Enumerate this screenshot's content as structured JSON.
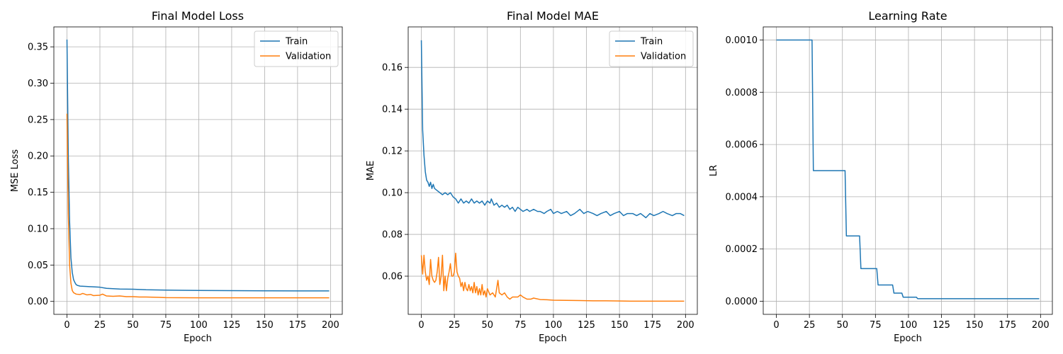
{
  "chart_data": [
    {
      "type": "line",
      "title": "Final Model Loss",
      "xlabel": "Epoch",
      "ylabel": "MSE Loss",
      "xlim": [
        -9.95,
        208.95
      ],
      "ylim": [
        -0.0178,
        0.3774
      ],
      "xticks": [
        0,
        25,
        50,
        75,
        100,
        125,
        150,
        175,
        200
      ],
      "xtick_labels": [
        "0",
        "25",
        "50",
        "75",
        "100",
        "125",
        "150",
        "175",
        "200"
      ],
      "yticks": [
        0.0,
        0.05,
        0.1,
        0.15,
        0.2,
        0.25,
        0.3,
        0.35
      ],
      "ytick_labels": [
        "0.00",
        "0.05",
        "0.10",
        "0.15",
        "0.20",
        "0.25",
        "0.30",
        "0.35"
      ],
      "grid": true,
      "legend": "top-right",
      "series": [
        {
          "name": "Train",
          "color": "#1f77b4",
          "points": [
            [
              0,
              0.36
            ],
            [
              1,
              0.2
            ],
            [
              2,
              0.11
            ],
            [
              3,
              0.06
            ],
            [
              4,
              0.04
            ],
            [
              5,
              0.03
            ],
            [
              6,
              0.026
            ],
            [
              7,
              0.023
            ],
            [
              8,
              0.022
            ],
            [
              10,
              0.021
            ],
            [
              15,
              0.0205
            ],
            [
              20,
              0.02
            ],
            [
              25,
              0.0195
            ],
            [
              30,
              0.018
            ],
            [
              40,
              0.017
            ],
            [
              50,
              0.0168
            ],
            [
              60,
              0.016
            ],
            [
              75,
              0.0155
            ],
            [
              100,
              0.015
            ],
            [
              125,
              0.0148
            ],
            [
              150,
              0.0146
            ],
            [
              175,
              0.0145
            ],
            [
              199,
              0.0145
            ]
          ]
        },
        {
          "name": "Validation",
          "color": "#ff7f0e",
          "points": [
            [
              0,
              0.258
            ],
            [
              1,
              0.12
            ],
            [
              2,
              0.05
            ],
            [
              3,
              0.025
            ],
            [
              4,
              0.015
            ],
            [
              5,
              0.012
            ],
            [
              7,
              0.01
            ],
            [
              10,
              0.0095
            ],
            [
              12,
              0.011
            ],
            [
              15,
              0.009
            ],
            [
              18,
              0.0095
            ],
            [
              20,
              0.008
            ],
            [
              25,
              0.0085
            ],
            [
              27,
              0.01
            ],
            [
              30,
              0.0075
            ],
            [
              35,
              0.007
            ],
            [
              40,
              0.0075
            ],
            [
              45,
              0.0065
            ],
            [
              50,
              0.0065
            ],
            [
              55,
              0.006
            ],
            [
              60,
              0.006
            ],
            [
              70,
              0.0055
            ],
            [
              75,
              0.0052
            ],
            [
              100,
              0.005
            ],
            [
              125,
              0.005
            ],
            [
              150,
              0.005
            ],
            [
              175,
              0.005
            ],
            [
              199,
              0.005
            ]
          ]
        }
      ]
    },
    {
      "type": "line",
      "title": "Final Model MAE",
      "xlabel": "Epoch",
      "ylabel": "MAE",
      "xlim": [
        -9.95,
        208.95
      ],
      "ylim": [
        0.0417,
        0.1794
      ],
      "xticks": [
        0,
        25,
        50,
        75,
        100,
        125,
        150,
        175,
        200
      ],
      "xtick_labels": [
        "0",
        "25",
        "50",
        "75",
        "100",
        "125",
        "150",
        "175",
        "200"
      ],
      "yticks": [
        0.06,
        0.08,
        0.1,
        0.12,
        0.14,
        0.16
      ],
      "ytick_labels": [
        "0.06",
        "0.08",
        "0.10",
        "0.12",
        "0.14",
        "0.16"
      ],
      "grid": true,
      "legend": "top-right",
      "series": [
        {
          "name": "Train",
          "color": "#1f77b4",
          "points": [
            [
              0,
              0.173
            ],
            [
              1,
              0.13
            ],
            [
              2,
              0.118
            ],
            [
              3,
              0.11
            ],
            [
              4,
              0.106
            ],
            [
              5,
              0.105
            ],
            [
              6,
              0.103
            ],
            [
              7,
              0.105
            ],
            [
              8,
              0.102
            ],
            [
              9,
              0.104
            ],
            [
              10,
              0.102
            ],
            [
              12,
              0.101
            ],
            [
              14,
              0.1
            ],
            [
              16,
              0.099
            ],
            [
              18,
              0.1
            ],
            [
              20,
              0.099
            ],
            [
              22,
              0.1
            ],
            [
              24,
              0.098
            ],
            [
              26,
              0.097
            ],
            [
              28,
              0.095
            ],
            [
              30,
              0.097
            ],
            [
              32,
              0.095
            ],
            [
              34,
              0.096
            ],
            [
              36,
              0.095
            ],
            [
              38,
              0.097
            ],
            [
              40,
              0.095
            ],
            [
              42,
              0.096
            ],
            [
              44,
              0.095
            ],
            [
              46,
              0.096
            ],
            [
              48,
              0.094
            ],
            [
              50,
              0.096
            ],
            [
              52,
              0.095
            ],
            [
              53,
              0.097
            ],
            [
              55,
              0.094
            ],
            [
              57,
              0.095
            ],
            [
              59,
              0.093
            ],
            [
              61,
              0.094
            ],
            [
              63,
              0.093
            ],
            [
              65,
              0.094
            ],
            [
              67,
              0.092
            ],
            [
              69,
              0.093
            ],
            [
              71,
              0.091
            ],
            [
              73,
              0.093
            ],
            [
              75,
              0.092
            ],
            [
              77,
              0.091
            ],
            [
              80,
              0.092
            ],
            [
              82,
              0.091
            ],
            [
              85,
              0.092
            ],
            [
              88,
              0.091
            ],
            [
              90,
              0.091
            ],
            [
              93,
              0.09
            ],
            [
              95,
              0.091
            ],
            [
              98,
              0.092
            ],
            [
              100,
              0.09
            ],
            [
              103,
              0.091
            ],
            [
              106,
              0.09
            ],
            [
              110,
              0.091
            ],
            [
              113,
              0.089
            ],
            [
              116,
              0.09
            ],
            [
              120,
              0.092
            ],
            [
              123,
              0.09
            ],
            [
              126,
              0.091
            ],
            [
              130,
              0.09
            ],
            [
              133,
              0.089
            ],
            [
              136,
              0.09
            ],
            [
              140,
              0.091
            ],
            [
              143,
              0.089
            ],
            [
              146,
              0.09
            ],
            [
              150,
              0.091
            ],
            [
              153,
              0.089
            ],
            [
              156,
              0.09
            ],
            [
              160,
              0.09
            ],
            [
              163,
              0.089
            ],
            [
              166,
              0.09
            ],
            [
              170,
              0.088
            ],
            [
              173,
              0.09
            ],
            [
              176,
              0.089
            ],
            [
              180,
              0.09
            ],
            [
              183,
              0.091
            ],
            [
              186,
              0.09
            ],
            [
              190,
              0.089
            ],
            [
              193,
              0.09
            ],
            [
              196,
              0.09
            ],
            [
              199,
              0.089
            ]
          ]
        },
        {
          "name": "Validation",
          "color": "#ff7f0e",
          "points": [
            [
              0,
              0.07
            ],
            [
              1,
              0.061
            ],
            [
              2,
              0.07
            ],
            [
              3,
              0.062
            ],
            [
              4,
              0.058
            ],
            [
              5,
              0.06
            ],
            [
              6,
              0.056
            ],
            [
              7,
              0.068
            ],
            [
              8,
              0.06
            ],
            [
              9,
              0.058
            ],
            [
              10,
              0.057
            ],
            [
              11,
              0.058
            ],
            [
              12,
              0.062
            ],
            [
              13,
              0.069
            ],
            [
              14,
              0.056
            ],
            [
              15,
              0.06
            ],
            [
              16,
              0.07
            ],
            [
              17,
              0.053
            ],
            [
              18,
              0.06
            ],
            [
              19,
              0.053
            ],
            [
              20,
              0.059
            ],
            [
              21,
              0.062
            ],
            [
              22,
              0.066
            ],
            [
              23,
              0.06
            ],
            [
              24,
              0.06
            ],
            [
              25,
              0.062
            ],
            [
              26,
              0.071
            ],
            [
              27,
              0.062
            ],
            [
              28,
              0.06
            ],
            [
              29,
              0.059
            ],
            [
              30,
              0.055
            ],
            [
              31,
              0.057
            ],
            [
              32,
              0.053
            ],
            [
              33,
              0.057
            ],
            [
              34,
              0.054
            ],
            [
              35,
              0.053
            ],
            [
              36,
              0.056
            ],
            [
              37,
              0.053
            ],
            [
              38,
              0.055
            ],
            [
              39,
              0.052
            ],
            [
              40,
              0.057
            ],
            [
              41,
              0.052
            ],
            [
              42,
              0.055
            ],
            [
              43,
              0.051
            ],
            [
              44,
              0.054
            ],
            [
              45,
              0.051
            ],
            [
              46,
              0.056
            ],
            [
              47,
              0.051
            ],
            [
              48,
              0.053
            ],
            [
              49,
              0.05
            ],
            [
              50,
              0.054
            ],
            [
              52,
              0.051
            ],
            [
              54,
              0.052
            ],
            [
              56,
              0.05
            ],
            [
              58,
              0.058
            ],
            [
              59,
              0.052
            ],
            [
              61,
              0.051
            ],
            [
              63,
              0.052
            ],
            [
              65,
              0.05
            ],
            [
              67,
              0.049
            ],
            [
              69,
              0.05
            ],
            [
              71,
              0.05
            ],
            [
              73,
              0.05
            ],
            [
              75,
              0.051
            ],
            [
              77,
              0.05
            ],
            [
              80,
              0.049
            ],
            [
              83,
              0.049
            ],
            [
              85,
              0.0495
            ],
            [
              90,
              0.0488
            ],
            [
              95,
              0.0487
            ],
            [
              100,
              0.0485
            ],
            [
              110,
              0.0484
            ],
            [
              120,
              0.0483
            ],
            [
              130,
              0.0482
            ],
            [
              140,
              0.0482
            ],
            [
              150,
              0.0481
            ],
            [
              160,
              0.048
            ],
            [
              170,
              0.048
            ],
            [
              180,
              0.048
            ],
            [
              190,
              0.048
            ],
            [
              199,
              0.048
            ]
          ]
        }
      ]
    },
    {
      "type": "line",
      "title": "Learning Rate",
      "xlabel": "Epoch",
      "ylabel": "LR",
      "xlim": [
        -9.95,
        208.95
      ],
      "ylim": [
        -5e-05,
        0.00105
      ],
      "xticks": [
        0,
        25,
        50,
        75,
        100,
        125,
        150,
        175,
        200
      ],
      "xtick_labels": [
        "0",
        "25",
        "50",
        "75",
        "100",
        "125",
        "150",
        "175",
        "200"
      ],
      "yticks": [
        0.0,
        0.0002,
        0.0004,
        0.0006,
        0.0008,
        0.001
      ],
      "ytick_labels": [
        "0.0000",
        "0.0002",
        "0.0004",
        "0.0006",
        "0.0008",
        "0.0010"
      ],
      "grid": true,
      "legend": "none",
      "series": [
        {
          "color": "#1f77b4",
          "points": [
            [
              0,
              0.001
            ],
            [
              27,
              0.001
            ],
            [
              28,
              0.0005
            ],
            [
              52,
              0.0005
            ],
            [
              53,
              0.00025
            ],
            [
              63,
              0.00025
            ],
            [
              64,
              0.000125
            ],
            [
              76,
              0.000125
            ],
            [
              77,
              6.25e-05
            ],
            [
              88,
              6.25e-05
            ],
            [
              89,
              3.125e-05
            ],
            [
              95,
              3.125e-05
            ],
            [
              96,
              1.56e-05
            ],
            [
              106,
              1.56e-05
            ],
            [
              107,
              1e-05
            ],
            [
              199,
              1e-05
            ]
          ]
        }
      ]
    }
  ]
}
